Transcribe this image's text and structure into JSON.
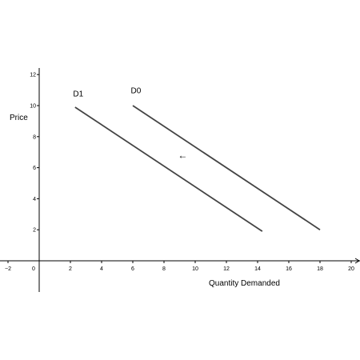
{
  "chart_data": {
    "type": "line",
    "title": "",
    "xlabel": "Quantity Demanded",
    "ylabel": "Price",
    "xlim": [
      -2,
      20
    ],
    "ylim": [
      -2,
      12
    ],
    "x_ticks": [
      -2,
      0,
      2,
      4,
      6,
      8,
      10,
      12,
      14,
      16,
      18,
      20
    ],
    "y_ticks": [
      2,
      4,
      6,
      8,
      10,
      12
    ],
    "grid": false,
    "series": [
      {
        "name": "D1",
        "points": [
          [
            2.3,
            9.9
          ],
          [
            14.3,
            1.9
          ]
        ],
        "color": "#444444"
      },
      {
        "name": "D0",
        "points": [
          [
            6.0,
            10.0
          ],
          [
            18.0,
            2.0
          ]
        ],
        "color": "#444444"
      }
    ],
    "annotations": [
      {
        "text": "D1",
        "x": 2.5,
        "y": 10.6
      },
      {
        "text": "D0",
        "x": 6.2,
        "y": 10.8
      },
      {
        "text": "←",
        "x": 9.2,
        "y": 6.6
      }
    ]
  }
}
